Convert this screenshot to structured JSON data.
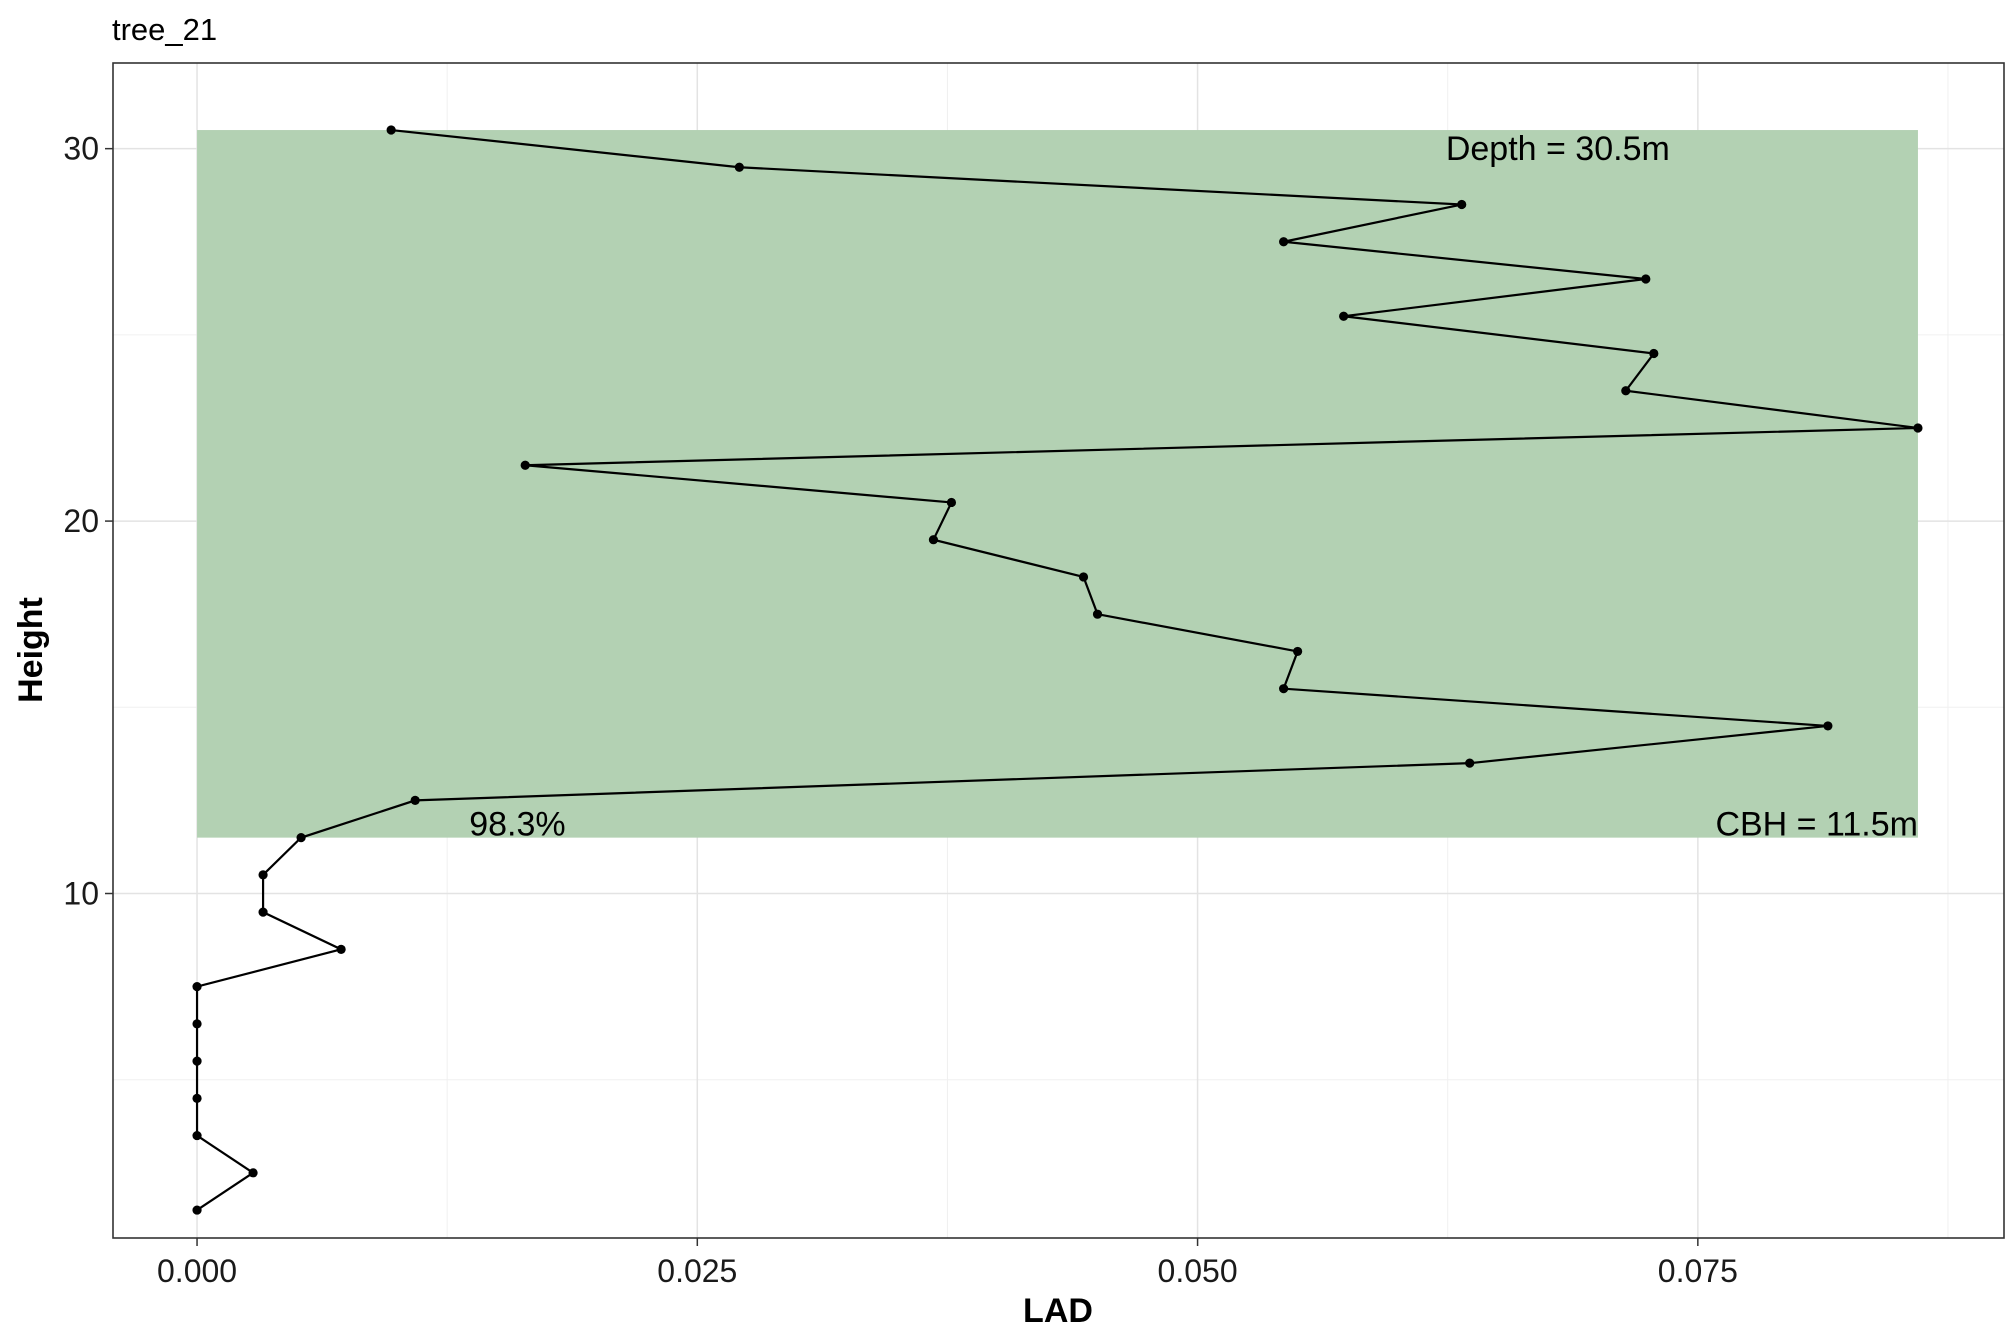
{
  "chart_data": {
    "type": "line",
    "title": "tree_21",
    "xlabel": "LAD",
    "ylabel": "Height",
    "xlim": [
      -0.0042,
      0.0903
    ],
    "ylim": [
      0.75,
      32.3
    ],
    "x_ticks": [
      0.0,
      0.025,
      0.05,
      0.075
    ],
    "x_tick_labels": [
      "0.000",
      "0.025",
      "0.050",
      "0.075"
    ],
    "y_ticks": [
      10,
      20,
      30
    ],
    "y_tick_labels": [
      "10",
      "20",
      "30"
    ],
    "grid": true,
    "series": [
      {
        "x": [
          0.0,
          0.0028,
          0.0,
          0.0,
          0.0,
          0.0,
          0.0,
          0.0072,
          0.0033,
          0.0033,
          0.0052,
          0.0109,
          0.0636,
          0.0815,
          0.0543,
          0.055,
          0.045,
          0.0443,
          0.0368,
          0.0377,
          0.0164,
          0.086,
          0.0714,
          0.0728,
          0.0573,
          0.0724,
          0.0543,
          0.0632,
          0.0271,
          0.0097
        ],
        "y": [
          1.5,
          2.5,
          3.5,
          4.5,
          5.5,
          6.5,
          7.5,
          8.5,
          9.5,
          10.5,
          11.5,
          12.5,
          13.5,
          14.5,
          15.5,
          16.5,
          17.5,
          18.5,
          19.5,
          20.5,
          21.5,
          22.5,
          23.5,
          24.5,
          25.5,
          26.5,
          27.5,
          28.5,
          29.5,
          30.5
        ],
        "color": "#000000"
      }
    ],
    "crown_region": {
      "x_range": [
        0.0,
        0.086
      ],
      "y_range": [
        11.5,
        30.5
      ],
      "color": "#b3d1b3"
    },
    "annotations": {
      "depth": "Depth = 30.5m",
      "cbh": "CBH = 11.5m",
      "percent": "98.3%"
    }
  }
}
